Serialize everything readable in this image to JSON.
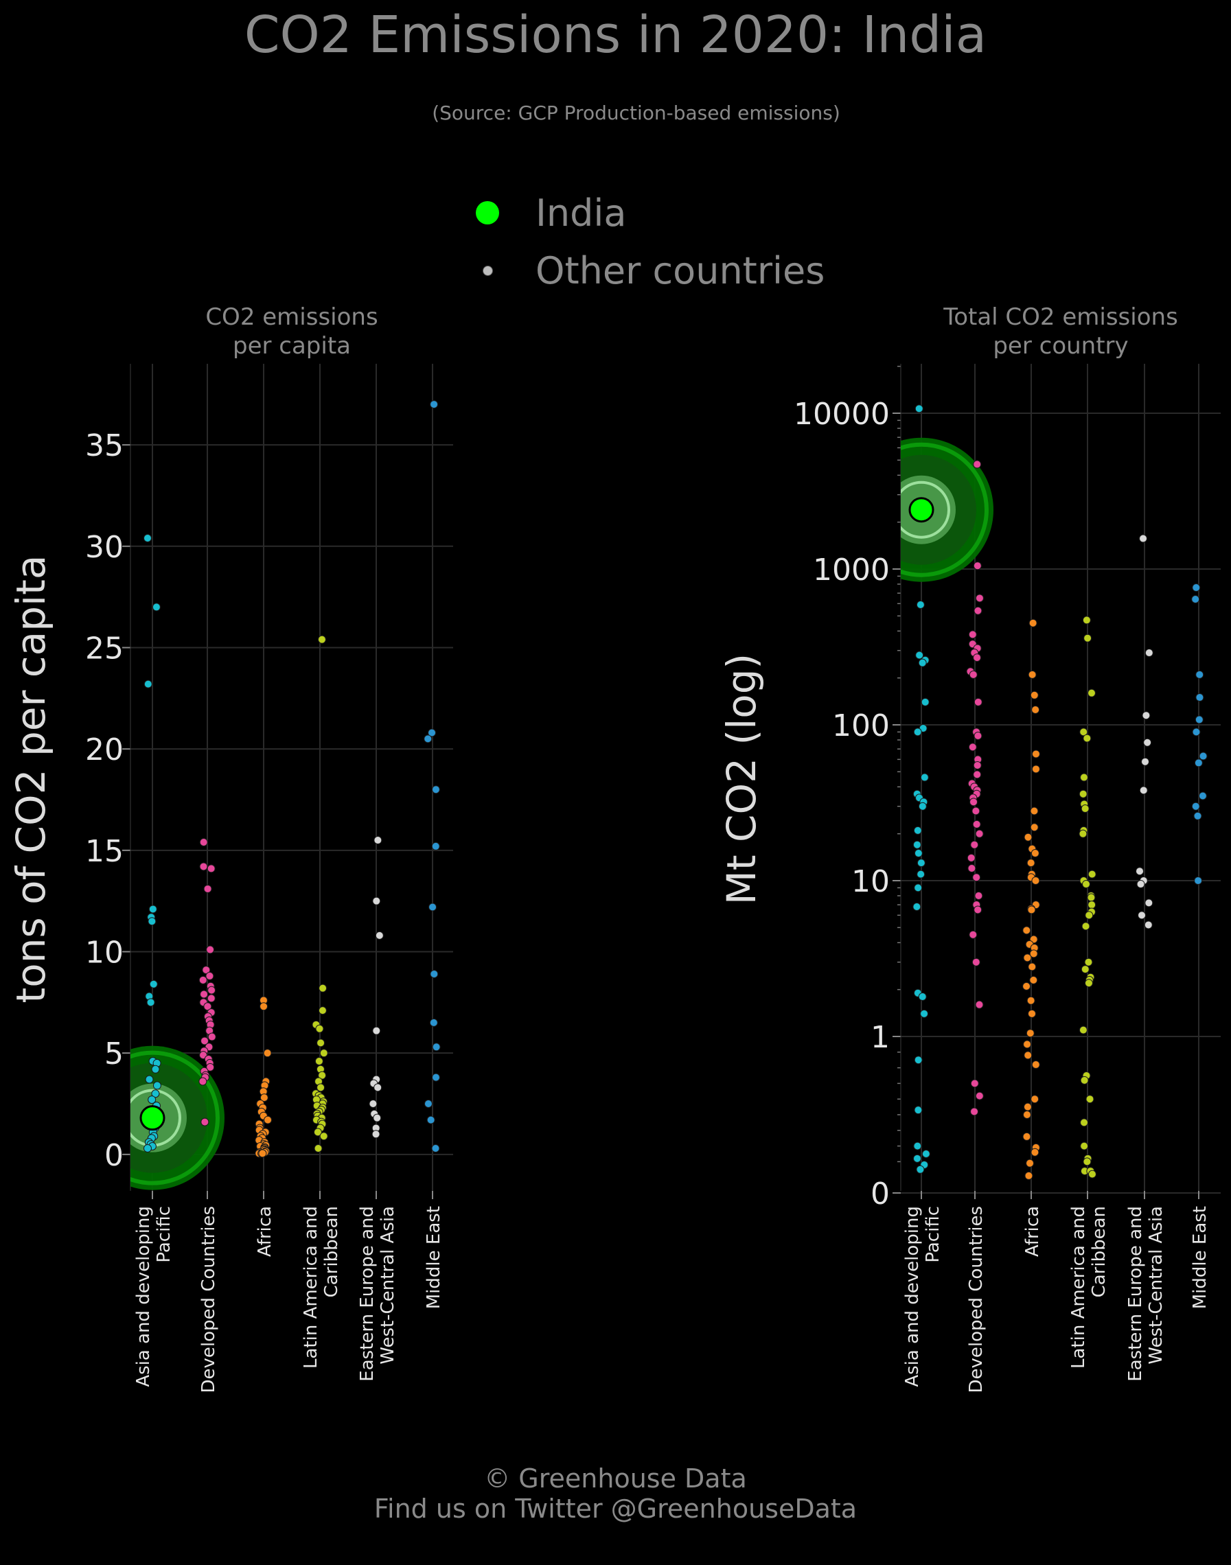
{
  "title": "CO2 Emissions in 2020: India",
  "subtitle": "(Source: GCP Production-based emissions)",
  "legend": {
    "highlight_label": "India",
    "others_label": "Other countries",
    "highlight_color": "#00ff00",
    "others_color": "#bdbdbd"
  },
  "footer": {
    "line1": "© Greenhouse Data",
    "line2": "Find us on Twitter @GreenhouseData"
  },
  "colors": {
    "Asia and developing Pacific": "#17becf",
    "Developed Countries": "#e7479a",
    "Africa": "#f58a1f",
    "Latin America and Caribbean": "#bcd01e",
    "Eastern Europe and West-Central Asia": "#d8d8d8",
    "Middle East": "#2b95d1"
  },
  "chart_data": [
    {
      "type": "scatter",
      "panel_title": [
        "CO2 emissions",
        "per capita"
      ],
      "ylabel": "tons of CO2 per capita",
      "ylim": [
        -1.8,
        39
      ],
      "yticks": [
        0,
        5,
        10,
        15,
        20,
        25,
        30,
        35
      ],
      "ytick_labels": [
        "0",
        "5",
        "10",
        "15",
        "20",
        "25",
        "30",
        "35"
      ],
      "categories": [
        [
          "Asia and developing",
          "Pacific"
        ],
        [
          "Developed Countries"
        ],
        [
          "Africa"
        ],
        [
          "Latin America and",
          "Caribbean"
        ],
        [
          "Eastern Europe and",
          "West-Central Asia"
        ],
        [
          "Middle East"
        ]
      ],
      "highlight": {
        "category": 0,
        "value": 1.8
      },
      "series": [
        {
          "group": "Asia and developing Pacific",
          "values": [
            30.4,
            27.0,
            23.2,
            12.1,
            11.7,
            11.5,
            8.4,
            7.8,
            7.5,
            4.6,
            4.5,
            4.2,
            3.7,
            3.4,
            3.0,
            2.7,
            2.4,
            2.1,
            1.9,
            1.6,
            1.3,
            1.1,
            0.9,
            0.8,
            0.6,
            0.5,
            0.4,
            0.3
          ]
        },
        {
          "group": "Developed Countries",
          "values": [
            15.4,
            14.2,
            14.1,
            13.1,
            10.1,
            9.1,
            8.8,
            8.6,
            8.3,
            8.1,
            7.9,
            7.7,
            7.5,
            7.3,
            7.0,
            6.8,
            6.6,
            6.4,
            6.1,
            5.8,
            5.6,
            5.3,
            5.1,
            4.9,
            4.7,
            4.5,
            4.3,
            4.1,
            3.9,
            3.8,
            3.6,
            1.6
          ]
        },
        {
          "group": "Africa",
          "values": [
            7.6,
            7.3,
            5.0,
            3.6,
            3.4,
            3.1,
            2.8,
            2.5,
            2.3,
            2.1,
            1.9,
            1.7,
            1.5,
            1.3,
            1.2,
            1.1,
            1.0,
            0.9,
            0.8,
            0.7,
            0.6,
            0.5,
            0.45,
            0.4,
            0.35,
            0.3,
            0.25,
            0.2,
            0.15,
            0.1,
            0.1,
            0.05,
            0.05,
            0.05
          ]
        },
        {
          "group": "Latin America and Caribbean",
          "values": [
            25.4,
            8.2,
            7.1,
            6.4,
            6.2,
            5.5,
            5.0,
            4.6,
            4.2,
            3.9,
            3.6,
            3.3,
            3.0,
            2.9,
            2.8,
            2.7,
            2.6,
            2.5,
            2.4,
            2.3,
            2.2,
            2.1,
            2.0,
            1.9,
            1.8,
            1.7,
            1.6,
            1.5,
            1.3,
            1.1,
            0.9,
            0.3
          ]
        },
        {
          "group": "Eastern Europe and West-Central Asia",
          "values": [
            15.5,
            12.5,
            10.8,
            6.1,
            3.7,
            3.5,
            3.3,
            2.5,
            2.0,
            1.8,
            1.3,
            1.0
          ]
        },
        {
          "group": "Middle East",
          "values": [
            37.0,
            20.8,
            20.5,
            18.0,
            15.2,
            12.2,
            8.9,
            6.5,
            5.3,
            3.8,
            2.5,
            1.7,
            0.3
          ]
        }
      ]
    },
    {
      "type": "scatter",
      "panel_title": [
        "Total CO2 emissions",
        "per country"
      ],
      "ylabel": "Mt CO2 (log)",
      "y_scale": "log (tick 0 shown at bottom)",
      "yticks": [
        0,
        1,
        10,
        100,
        1000,
        10000
      ],
      "ytick_labels": [
        "0",
        "1",
        "10",
        "100",
        "1000",
        "10000"
      ],
      "ylim": [
        "0 (bottom)",
        20000
      ],
      "categories": [
        [
          "Asia and developing",
          "Pacific"
        ],
        [
          "Developed Countries"
        ],
        [
          "Africa"
        ],
        [
          "Latin America and",
          "Caribbean"
        ],
        [
          "Eastern Europe and",
          "West-Central Asia"
        ],
        [
          "Middle East"
        ]
      ],
      "highlight": {
        "category": 0,
        "value": 2400
      },
      "series": [
        {
          "group": "Asia and developing Pacific",
          "values": [
            10700,
            590,
            280,
            260,
            250,
            140,
            95,
            90,
            46,
            36,
            34,
            32,
            30,
            21,
            17,
            15,
            13,
            11,
            9,
            6.8,
            1.9,
            1.8,
            1.4,
            0.85,
            0.53,
            0.3,
            0.25,
            0.22,
            0.18,
            0.15
          ]
        },
        {
          "group": "Developed Countries",
          "values": [
            4700,
            1050,
            650,
            540,
            380,
            330,
            310,
            290,
            270,
            220,
            210,
            140,
            90,
            85,
            72,
            60,
            55,
            48,
            42,
            40,
            38,
            36,
            34,
            32,
            28,
            23,
            20,
            17,
            14,
            12,
            10.5,
            8,
            7,
            6.5,
            4.5,
            3,
            1.6,
            0.7,
            0.62,
            0.52
          ]
        },
        {
          "group": "Africa",
          "values": [
            450,
            210,
            155,
            125,
            65,
            52,
            28,
            22,
            19,
            16,
            15,
            13,
            11,
            10.5,
            10,
            7,
            6.6,
            6.5,
            4.8,
            4.2,
            3.9,
            3.7,
            3.4,
            3.2,
            2.8,
            2.3,
            2.1,
            1.7,
            1.4,
            1.05,
            0.95,
            0.88,
            0.82,
            0.6,
            0.55,
            0.5,
            0.36,
            0.29,
            0.26,
            0.19,
            0.11
          ]
        },
        {
          "group": "Latin America and Caribbean",
          "values": [
            470,
            360,
            160,
            90,
            82,
            46,
            36,
            31,
            29,
            21,
            20,
            11,
            10,
            9.5,
            8,
            7.8,
            7,
            6.3,
            6,
            5.1,
            3,
            2.7,
            2.4,
            2.3,
            2.2,
            1.1,
            0.75,
            0.72,
            0.6,
            0.45,
            0.3,
            0.22,
            0.2,
            0.14,
            0.14,
            0.12
          ]
        },
        {
          "group": "Eastern Europe and West-Central Asia",
          "values": [
            1570,
            290,
            115,
            77,
            58,
            38,
            11.5,
            10,
            9.5,
            7.2,
            6,
            5.2
          ]
        },
        {
          "group": "Middle East",
          "values": [
            760,
            640,
            210,
            150,
            108,
            90,
            63,
            57,
            35,
            30,
            26,
            10
          ]
        }
      ]
    }
  ]
}
